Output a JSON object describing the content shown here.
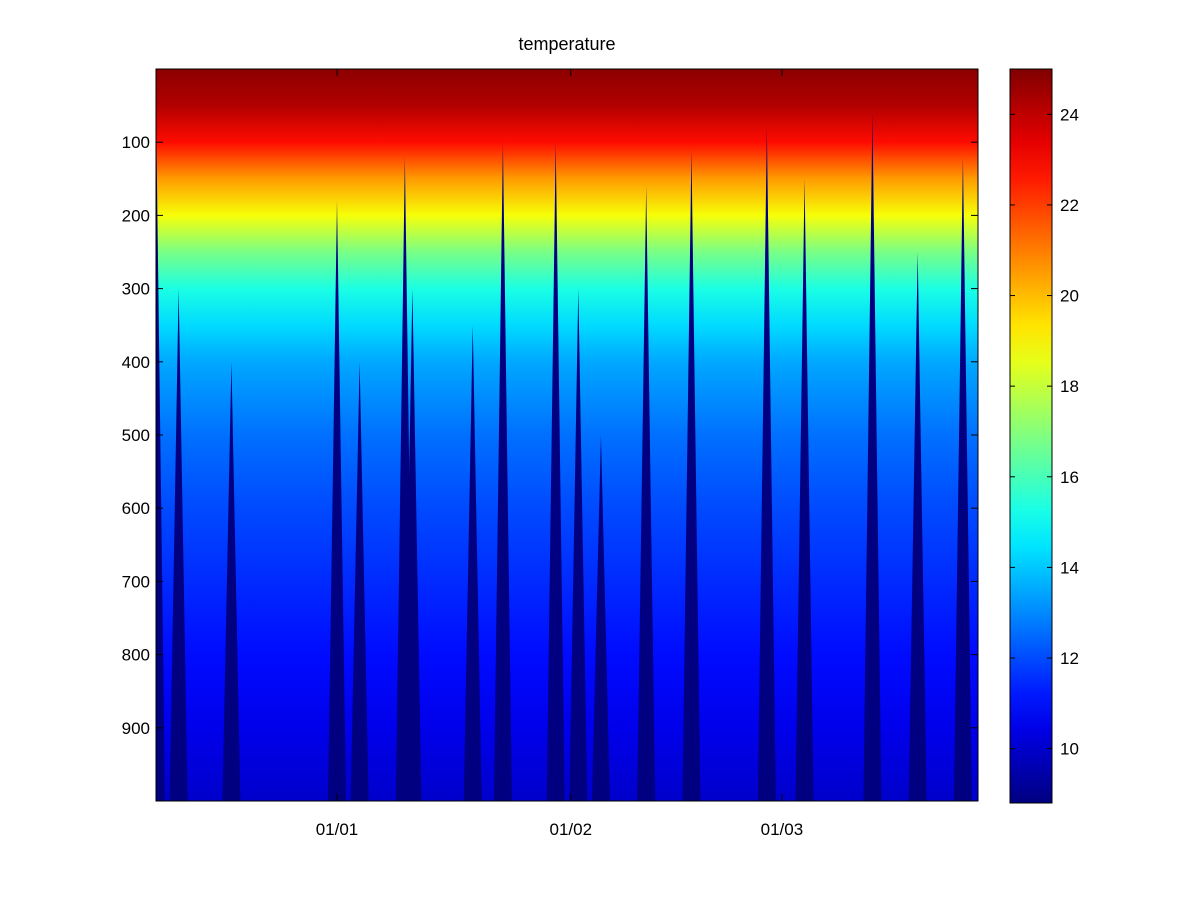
{
  "chart_data": {
    "type": "heatmap",
    "title": "temperature",
    "xlabel": "",
    "ylabel": "",
    "colorbar_label": "",
    "colormap": "jet",
    "x_axis": {
      "type": "date",
      "range": [
        "2012-12-08",
        "2013-03-27"
      ],
      "tick_labels": [
        "01/01",
        "01/02",
        "01/03"
      ],
      "tick_values": [
        "2013-01-01",
        "2013-02-01",
        "2013-03-01"
      ]
    },
    "y_axis": {
      "reversed": true,
      "range": [
        0,
        1000
      ],
      "ticks": [
        100,
        200,
        300,
        400,
        500,
        600,
        700,
        800,
        900
      ],
      "tick_labels": [
        "100",
        "200",
        "300",
        "400",
        "500",
        "600",
        "700",
        "800",
        "900"
      ]
    },
    "color_axis": {
      "range": [
        8.8,
        25
      ],
      "ticks": [
        10,
        12,
        14,
        16,
        18,
        20,
        22,
        24
      ],
      "tick_labels": [
        "10",
        "12",
        "14",
        "16",
        "18",
        "20",
        "22",
        "24"
      ]
    },
    "grid": false,
    "temperature_profile": {
      "depth": [
        0,
        50,
        100,
        150,
        200,
        250,
        300,
        350,
        400,
        500,
        600,
        700,
        800,
        900,
        1000
      ],
      "temperature": [
        24.8,
        24.2,
        22.8,
        20.5,
        18.8,
        16.8,
        15.3,
        14.3,
        13.5,
        12.6,
        12.0,
        11.5,
        11.0,
        10.5,
        10.0
      ]
    },
    "gaps": [
      {
        "date": "2012-12-08",
        "top_depth": 50
      },
      {
        "date": "2012-12-11",
        "top_depth": 300
      },
      {
        "date": "2012-12-18",
        "top_depth": 400
      },
      {
        "date": "2013-01-01",
        "top_depth": 180
      },
      {
        "date": "2013-01-04",
        "top_depth": 400
      },
      {
        "date": "2013-01-10",
        "top_depth": 120
      },
      {
        "date": "2013-01-11",
        "top_depth": 300
      },
      {
        "date": "2013-01-19",
        "top_depth": 350
      },
      {
        "date": "2013-01-23",
        "top_depth": 100
      },
      {
        "date": "2013-01-30",
        "top_depth": 100
      },
      {
        "date": "2013-02-02",
        "top_depth": 300
      },
      {
        "date": "2013-02-05",
        "top_depth": 500
      },
      {
        "date": "2013-02-11",
        "top_depth": 160
      },
      {
        "date": "2013-02-17",
        "top_depth": 110
      },
      {
        "date": "2013-02-27",
        "top_depth": 80
      },
      {
        "date": "2013-03-04",
        "top_depth": 150
      },
      {
        "date": "2013-03-13",
        "top_depth": 60
      },
      {
        "date": "2013-03-19",
        "top_depth": 250
      },
      {
        "date": "2013-03-25",
        "top_depth": 120
      }
    ]
  }
}
